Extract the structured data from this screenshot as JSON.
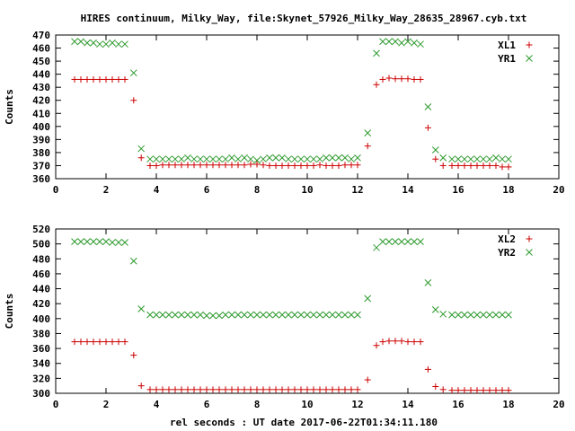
{
  "title": "HIRES continuum, Milky_Way, file:Skynet_57926_Milky_Way_28635_28967.cyb.txt",
  "xlabel": "rel seconds : UT date 2017-06-22T01:34:11.180",
  "colors": {
    "xl": "#cc0000",
    "yr": "#2e9a2e"
  },
  "chart_data": [
    {
      "type": "scatter",
      "ylabel": "Counts",
      "xlim": [
        0,
        20
      ],
      "ylim": [
        360,
        470
      ],
      "xticks": [
        "0",
        "2",
        "4",
        "6",
        "8",
        "10",
        "12",
        "14",
        "16",
        "18",
        "20"
      ],
      "yticks": [
        "360",
        "370",
        "380",
        "390",
        "400",
        "410",
        "420",
        "430",
        "440",
        "450",
        "460",
        "470"
      ],
      "legend_position": "top-right",
      "x": [
        0.75,
        1.0,
        1.25,
        1.5,
        1.75,
        2.0,
        2.25,
        2.5,
        2.75,
        3.1,
        3.4,
        3.75,
        4.0,
        4.25,
        4.5,
        4.75,
        5.0,
        5.25,
        5.5,
        5.75,
        6.0,
        6.25,
        6.5,
        6.75,
        7.0,
        7.25,
        7.5,
        7.75,
        8.0,
        8.25,
        8.5,
        8.75,
        9.0,
        9.25,
        9.5,
        9.75,
        10.0,
        10.25,
        10.5,
        10.75,
        11.0,
        11.25,
        11.5,
        11.75,
        12.0,
        12.4,
        12.75,
        13.0,
        13.25,
        13.5,
        13.75,
        14.0,
        14.25,
        14.5,
        14.8,
        15.1,
        15.4,
        15.75,
        16.0,
        16.25,
        16.5,
        16.75,
        17.0,
        17.25,
        17.5,
        17.75,
        18.0
      ],
      "series": [
        {
          "name": "XL1",
          "marker": "plus",
          "color": "#cc0000",
          "values": [
            436,
            436,
            436,
            436,
            436,
            436,
            436,
            436,
            436,
            420,
            376,
            370,
            370,
            370.5,
            370.5,
            370.5,
            370.5,
            370.5,
            370.5,
            370.5,
            370.5,
            370.5,
            370.5,
            370.5,
            370.5,
            370.5,
            370.5,
            371,
            371,
            370.5,
            370,
            370,
            370,
            370,
            370,
            370,
            370,
            370,
            370.5,
            370,
            370,
            370,
            370.5,
            370.5,
            370.5,
            385,
            432,
            436,
            437,
            436.5,
            436.5,
            436.5,
            436,
            436,
            399,
            375,
            370,
            370,
            370,
            370,
            370,
            370,
            370,
            370,
            370,
            369,
            369
          ]
        },
        {
          "name": "YR1",
          "marker": "cross",
          "color": "#2e9a2e",
          "values": [
            465,
            465,
            464,
            464,
            463,
            463,
            464,
            463,
            463,
            441,
            383,
            375,
            375,
            375,
            375,
            375,
            375,
            376,
            375,
            375,
            375,
            375,
            375,
            375,
            376,
            375,
            376,
            375,
            374,
            375,
            376,
            376,
            376,
            375,
            375,
            375,
            375,
            375,
            375,
            376,
            376,
            376,
            376,
            375,
            376,
            395,
            456,
            465,
            465,
            465,
            464,
            465,
            464,
            463,
            415,
            382,
            376,
            375,
            375,
            375,
            375,
            375,
            375,
            375,
            376,
            375,
            375
          ]
        }
      ]
    },
    {
      "type": "scatter",
      "ylabel": "Counts",
      "xlim": [
        0,
        20
      ],
      "ylim": [
        300,
        520
      ],
      "xticks": [
        "0",
        "2",
        "4",
        "6",
        "8",
        "10",
        "12",
        "14",
        "16",
        "18",
        "20"
      ],
      "yticks": [
        "300",
        "320",
        "340",
        "360",
        "380",
        "400",
        "420",
        "440",
        "460",
        "480",
        "500",
        "520"
      ],
      "legend_position": "top-right",
      "x": [
        0.75,
        1.0,
        1.25,
        1.5,
        1.75,
        2.0,
        2.25,
        2.5,
        2.75,
        3.1,
        3.4,
        3.75,
        4.0,
        4.25,
        4.5,
        4.75,
        5.0,
        5.25,
        5.5,
        5.75,
        6.0,
        6.25,
        6.5,
        6.75,
        7.0,
        7.25,
        7.5,
        7.75,
        8.0,
        8.25,
        8.5,
        8.75,
        9.0,
        9.25,
        9.5,
        9.75,
        10.0,
        10.25,
        10.5,
        10.75,
        11.0,
        11.25,
        11.5,
        11.75,
        12.0,
        12.4,
        12.75,
        13.0,
        13.25,
        13.5,
        13.75,
        14.0,
        14.25,
        14.5,
        14.8,
        15.1,
        15.4,
        15.75,
        16.0,
        16.25,
        16.5,
        16.75,
        17.0,
        17.25,
        17.5,
        17.75,
        18.0
      ],
      "series": [
        {
          "name": "XL2",
          "marker": "plus",
          "color": "#cc0000",
          "values": [
            369,
            369,
            369,
            369,
            369,
            369,
            369,
            369,
            369,
            351,
            310,
            305,
            305,
            305,
            305,
            305,
            305,
            305,
            305,
            305,
            305,
            305,
            305,
            305,
            305,
            305,
            305,
            305,
            305,
            305,
            305,
            305,
            305,
            305,
            305,
            305,
            305,
            305,
            305,
            305,
            305,
            305,
            305,
            305,
            305,
            318,
            364,
            369,
            370,
            370,
            370,
            369,
            369,
            369,
            332,
            309,
            305,
            304,
            304,
            304,
            304,
            304,
            304,
            304,
            304,
            304,
            304
          ]
        },
        {
          "name": "YR2",
          "marker": "cross",
          "color": "#2e9a2e",
          "values": [
            503,
            503,
            503,
            503,
            503,
            503,
            502,
            502,
            502,
            477,
            413,
            405,
            405,
            405,
            405,
            405,
            405,
            405,
            405,
            405,
            404,
            404,
            404,
            405,
            405,
            405,
            405,
            405,
            405,
            405,
            405,
            405,
            405,
            405,
            405,
            405,
            405,
            405,
            405,
            405,
            405,
            405,
            405,
            405,
            405,
            427,
            495,
            503,
            503,
            503,
            503,
            503,
            503,
            503,
            448,
            412,
            406,
            405,
            405,
            405,
            405,
            405,
            405,
            405,
            405,
            405,
            405
          ]
        }
      ]
    }
  ]
}
